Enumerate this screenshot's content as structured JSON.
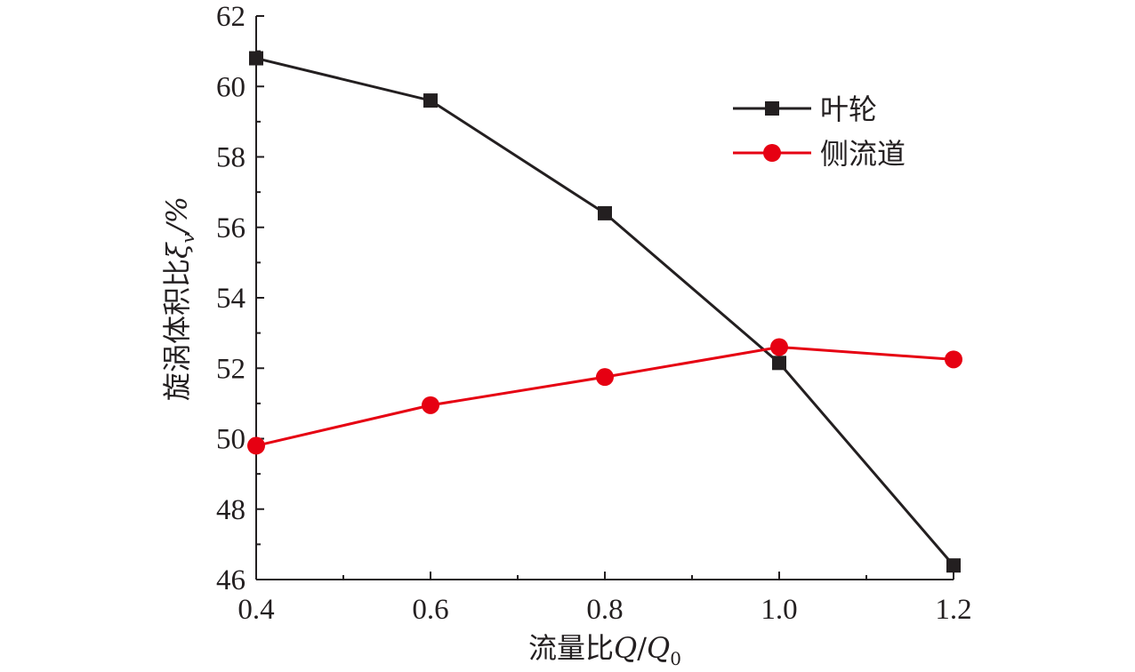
{
  "chart_data": {
    "type": "line",
    "xlabel": {
      "prefix": "流量比",
      "var": "Q",
      "sep": "/",
      "var2": "Q",
      "sub": "0"
    },
    "ylabel": {
      "prefix": "旋涡体积比",
      "var": "ξ",
      "sub": "v",
      "suffix": "/%"
    },
    "xlim": [
      0.4,
      1.2
    ],
    "ylim": [
      46,
      62
    ],
    "x_ticks": [
      "0.4",
      "0.6",
      "0.8",
      "1.0",
      "1.2"
    ],
    "y_ticks": [
      "46",
      "48",
      "50",
      "52",
      "54",
      "56",
      "58",
      "60",
      "62"
    ],
    "x": [
      0.4,
      0.6,
      0.8,
      1.0,
      1.2
    ],
    "series": [
      {
        "name": "叶轮",
        "values": [
          60.8,
          59.6,
          56.4,
          52.15,
          46.4
        ],
        "color": "#231f20",
        "marker": "square"
      },
      {
        "name": "侧流道",
        "values": [
          49.8,
          50.95,
          51.75,
          52.6,
          52.25
        ],
        "color": "#e60012",
        "marker": "circle"
      }
    ],
    "legend_position": "top-right",
    "grid": false
  }
}
